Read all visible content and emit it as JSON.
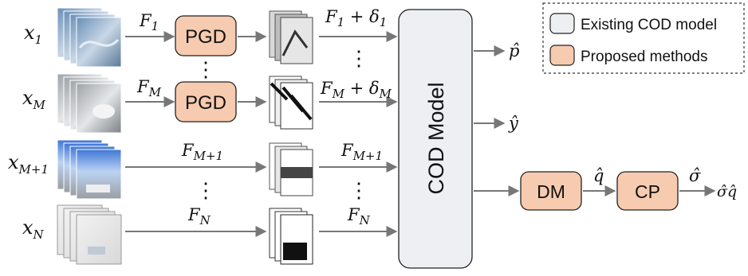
{
  "inputs": {
    "x1": "x",
    "x1_sub": "1",
    "xM": "x",
    "xM_sub": "M",
    "xM1": "x",
    "xM1_sub": "M+1",
    "xN": "x",
    "xN_sub": "N"
  },
  "features": {
    "F1": "F",
    "F1_sub": "1",
    "FM": "F",
    "FM_sub": "M",
    "FM1": "F",
    "FM1_sub": "M+1",
    "FN": "F",
    "FN_sub": "N"
  },
  "perturbed": {
    "p1_a": "F",
    "p1_sub": "1",
    "p1_b": " + δ",
    "p1_dsub": "1",
    "pM_a": "F",
    "pM_sub": "M",
    "pM_b": " + δ",
    "pM_dsub": "M",
    "pM1": "F",
    "pM1_sub": "M+1",
    "pN": "F",
    "pN_sub": "N"
  },
  "blocks": {
    "pgd_top": "PGD",
    "pgd_bottom": "PGD",
    "cod_model": "COD Model",
    "dm": "DM",
    "cp": "CP"
  },
  "outputs": {
    "p_hat": "p̂",
    "y_hat": "ŷ",
    "q_hat": "q̂",
    "sigma_hat": "σ̂",
    "final": "σ̂q̂"
  },
  "ellipsis": "⋮",
  "legend": {
    "existing": "Existing COD model",
    "proposed": "Proposed methods"
  },
  "colors": {
    "proposed_fill": "#f6cbb0",
    "existing_fill": "#eeeff3",
    "arrow": "#777777",
    "border": "#222222"
  }
}
